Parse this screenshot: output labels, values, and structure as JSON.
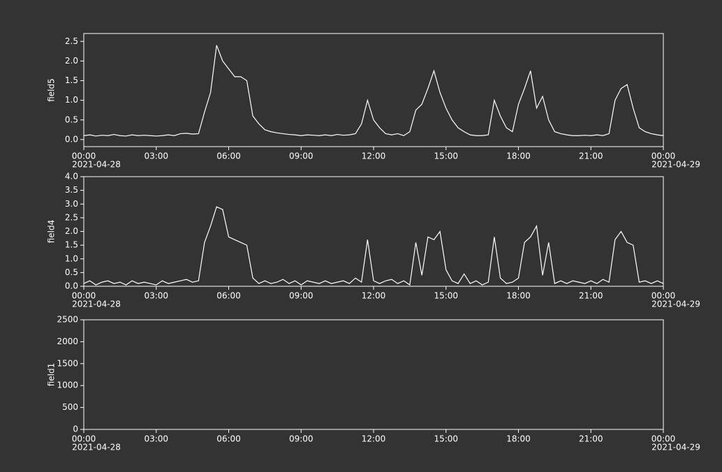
{
  "chart_data": [
    {
      "type": "line",
      "ylabel": "field5",
      "xlim": [
        0,
        24
      ],
      "ylim": [
        -0.18,
        2.7
      ],
      "xticks": [
        {
          "value": 0,
          "label": "00:00",
          "date": "2021-04-28"
        },
        {
          "value": 3,
          "label": "03:00"
        },
        {
          "value": 6,
          "label": "06:00"
        },
        {
          "value": 9,
          "label": "09:00"
        },
        {
          "value": 12,
          "label": "12:00"
        },
        {
          "value": 15,
          "label": "15:00"
        },
        {
          "value": 18,
          "label": "18:00"
        },
        {
          "value": 21,
          "label": "21:00"
        },
        {
          "value": 24,
          "label": "00:00",
          "date": "2021-04-29"
        }
      ],
      "yticks": [
        {
          "value": 0,
          "label": "0.0"
        },
        0.5,
        {
          "value": 1,
          "label": "1.0"
        },
        1.5,
        {
          "value": 2,
          "label": "2.0"
        },
        2.5
      ],
      "x": [
        0,
        0.25,
        0.5,
        0.75,
        1,
        1.25,
        1.5,
        1.75,
        2,
        2.25,
        2.5,
        2.75,
        3,
        3.25,
        3.5,
        3.75,
        4,
        4.25,
        4.5,
        4.75,
        5,
        5.25,
        5.5,
        5.75,
        6,
        6.25,
        6.5,
        6.75,
        7,
        7.25,
        7.5,
        7.75,
        8,
        8.25,
        8.5,
        8.75,
        9,
        9.25,
        9.5,
        9.75,
        10,
        10.25,
        10.5,
        10.75,
        11,
        11.25,
        11.5,
        11.75,
        12,
        12.25,
        12.5,
        12.75,
        13,
        13.25,
        13.5,
        13.75,
        14,
        14.25,
        14.5,
        14.75,
        15,
        15.25,
        15.5,
        15.75,
        16,
        16.25,
        16.5,
        16.75,
        17,
        17.25,
        17.5,
        17.75,
        18,
        18.25,
        18.5,
        18.75,
        19,
        19.25,
        19.5,
        19.75,
        20,
        20.25,
        20.5,
        20.75,
        21,
        21.25,
        21.5,
        21.75,
        22,
        22.25,
        22.5,
        22.75,
        23,
        23.25,
        23.5,
        23.75,
        24
      ],
      "series": [
        {
          "color": "#ffffff",
          "values": [
            0.1,
            0.12,
            0.09,
            0.11,
            0.1,
            0.13,
            0.1,
            0.09,
            0.12,
            0.1,
            0.11,
            0.1,
            0.09,
            0.1,
            0.12,
            0.1,
            0.15,
            0.16,
            0.14,
            0.15,
            0.7,
            1.2,
            2.4,
            2.0,
            1.8,
            1.6,
            1.6,
            1.5,
            0.6,
            0.4,
            0.25,
            0.2,
            0.17,
            0.15,
            0.13,
            0.12,
            0.1,
            0.12,
            0.11,
            0.1,
            0.12,
            0.1,
            0.13,
            0.11,
            0.12,
            0.15,
            0.4,
            1.0,
            0.5,
            0.3,
            0.15,
            0.12,
            0.15,
            0.1,
            0.2,
            0.75,
            0.9,
            1.3,
            1.75,
            1.2,
            0.8,
            0.5,
            0.3,
            0.2,
            0.12,
            0.1,
            0.1,
            0.12,
            1.0,
            0.6,
            0.3,
            0.2,
            0.9,
            1.3,
            1.75,
            0.8,
            1.1,
            0.5,
            0.2,
            0.15,
            0.12,
            0.1,
            0.1,
            0.11,
            0.1,
            0.12,
            0.1,
            0.15,
            1.0,
            1.3,
            1.4,
            0.8,
            0.3,
            0.2,
            0.15,
            0.12,
            0.1
          ]
        }
      ]
    },
    {
      "type": "line",
      "ylabel": "field4",
      "xlim": [
        0,
        24
      ],
      "ylim": [
        0,
        4
      ],
      "xticks": [
        {
          "value": 0,
          "label": "00:00",
          "date": "2021-04-28"
        },
        {
          "value": 3,
          "label": "03:00"
        },
        {
          "value": 6,
          "label": "06:00"
        },
        {
          "value": 9,
          "label": "09:00"
        },
        {
          "value": 12,
          "label": "12:00"
        },
        {
          "value": 15,
          "label": "15:00"
        },
        {
          "value": 18,
          "label": "18:00"
        },
        {
          "value": 21,
          "label": "21:00"
        },
        {
          "value": 24,
          "label": "00:00",
          "date": "2021-04-29"
        }
      ],
      "yticks": [
        {
          "value": 0,
          "label": "0.0"
        },
        0.5,
        {
          "value": 1,
          "label": "1.0"
        },
        1.5,
        {
          "value": 2,
          "label": "2.0"
        },
        2.5,
        {
          "value": 3,
          "label": "3.0"
        },
        3.5,
        {
          "value": 4,
          "label": "4.0"
        }
      ],
      "x": [
        0,
        0.25,
        0.5,
        0.75,
        1,
        1.25,
        1.5,
        1.75,
        2,
        2.25,
        2.5,
        2.75,
        3,
        3.25,
        3.5,
        3.75,
        4,
        4.25,
        4.5,
        4.75,
        5,
        5.25,
        5.5,
        5.75,
        6,
        6.25,
        6.5,
        6.75,
        7,
        7.25,
        7.5,
        7.75,
        8,
        8.25,
        8.5,
        8.75,
        9,
        9.25,
        9.5,
        9.75,
        10,
        10.25,
        10.5,
        10.75,
        11,
        11.25,
        11.5,
        11.75,
        12,
        12.25,
        12.5,
        12.75,
        13,
        13.25,
        13.5,
        13.75,
        14,
        14.25,
        14.5,
        14.75,
        15,
        15.25,
        15.5,
        15.75,
        16,
        16.25,
        16.5,
        16.75,
        17,
        17.25,
        17.5,
        17.75,
        18,
        18.25,
        18.5,
        18.75,
        19,
        19.25,
        19.5,
        19.75,
        20,
        20.25,
        20.5,
        20.75,
        21,
        21.25,
        21.5,
        21.75,
        22,
        22.25,
        22.5,
        22.75,
        23,
        23.25,
        23.5,
        23.75,
        24
      ],
      "series": [
        {
          "color": "#ffffff",
          "values": [
            0.1,
            0.2,
            0.05,
            0.15,
            0.2,
            0.1,
            0.15,
            0.05,
            0.2,
            0.1,
            0.15,
            0.1,
            0.05,
            0.2,
            0.1,
            0.15,
            0.2,
            0.25,
            0.15,
            0.2,
            1.6,
            2.2,
            2.9,
            2.8,
            1.8,
            1.7,
            1.6,
            1.5,
            0.3,
            0.1,
            0.2,
            0.1,
            0.15,
            0.25,
            0.1,
            0.2,
            0.05,
            0.2,
            0.15,
            0.1,
            0.2,
            0.1,
            0.15,
            0.2,
            0.1,
            0.3,
            0.15,
            1.7,
            0.2,
            0.1,
            0.2,
            0.25,
            0.1,
            0.2,
            0.05,
            1.6,
            0.4,
            1.8,
            1.7,
            2.0,
            0.6,
            0.2,
            0.1,
            0.45,
            0.1,
            0.2,
            0.05,
            0.15,
            1.8,
            0.3,
            0.1,
            0.15,
            0.3,
            1.6,
            1.8,
            2.2,
            0.4,
            1.6,
            0.1,
            0.2,
            0.1,
            0.2,
            0.15,
            0.1,
            0.2,
            0.1,
            0.25,
            0.15,
            1.7,
            2.0,
            1.6,
            1.5,
            0.15,
            0.2,
            0.1,
            0.2,
            0.1
          ]
        }
      ]
    },
    {
      "type": "line",
      "ylabel": "field1",
      "xlim": [
        0,
        24
      ],
      "ylim": [
        0,
        2500
      ],
      "xticks": [
        {
          "value": 0,
          "label": "00:00",
          "date": "2021-04-28"
        },
        {
          "value": 3,
          "label": "03:00"
        },
        {
          "value": 6,
          "label": "06:00"
        },
        {
          "value": 9,
          "label": "09:00"
        },
        {
          "value": 12,
          "label": "12:00"
        },
        {
          "value": 15,
          "label": "15:00"
        },
        {
          "value": 18,
          "label": "18:00"
        },
        {
          "value": 21,
          "label": "21:00"
        },
        {
          "value": 24,
          "label": "00:00",
          "date": "2021-04-29"
        }
      ],
      "yticks": [
        0,
        500,
        1000,
        1500,
        2000,
        2500
      ],
      "series": []
    }
  ]
}
